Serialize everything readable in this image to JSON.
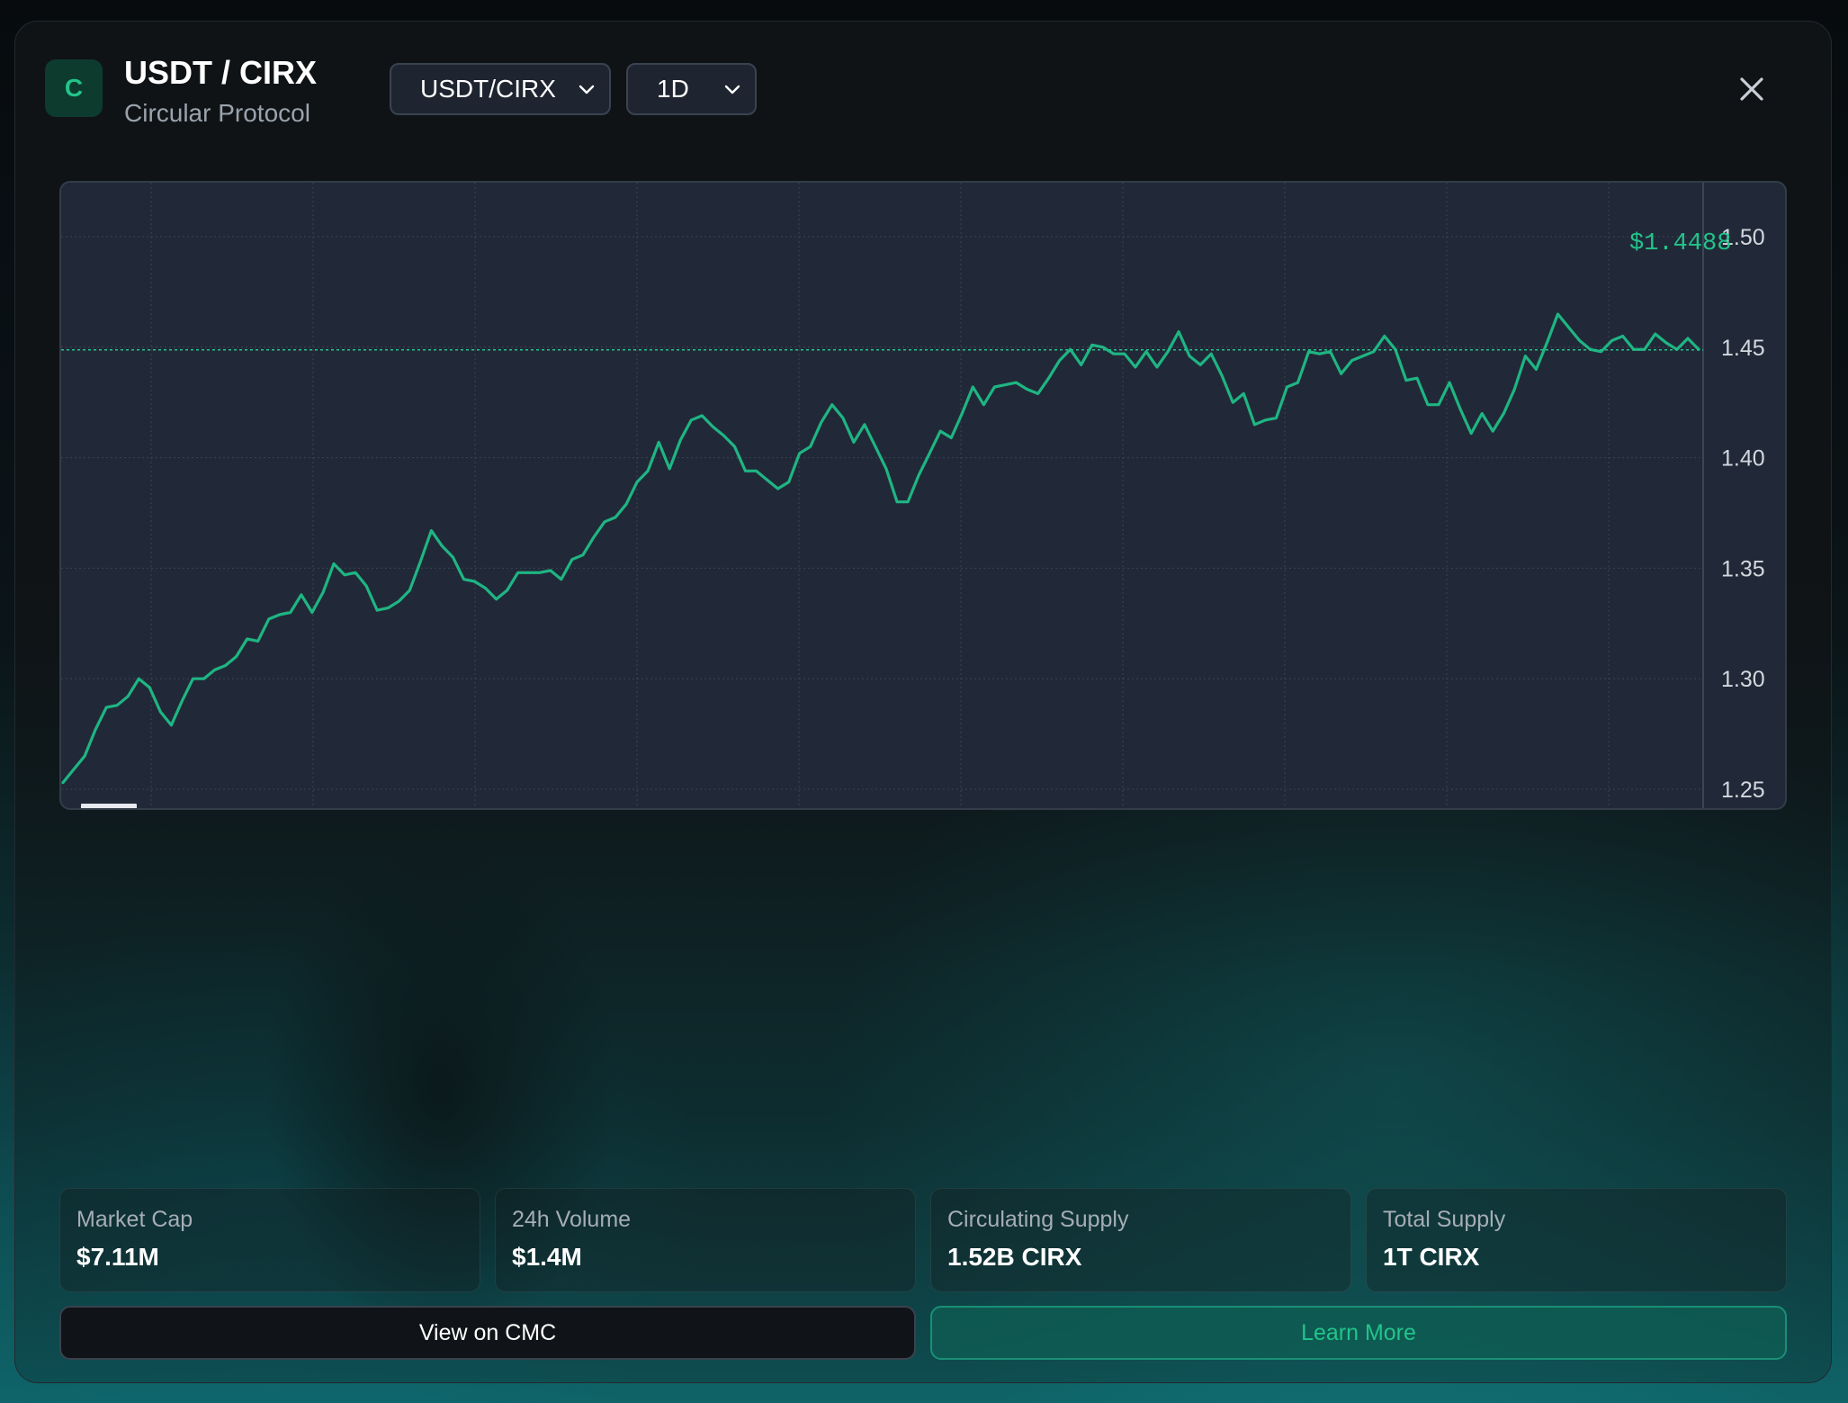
{
  "header": {
    "icon_letter": "C",
    "title": "USDT / CIRX",
    "subtitle": "Circular Protocol",
    "pair_select": {
      "value": "USDT/CIRX"
    },
    "interval_select": {
      "value": "1D"
    }
  },
  "colors": {
    "accent": "#22c48a",
    "chart_bg": "#212938",
    "line": "#1fb583"
  },
  "chart_data": {
    "type": "line",
    "title": "",
    "xlabel": "",
    "ylabel": "",
    "ylim": [
      1.24,
      1.505
    ],
    "y_ticks": [
      "1.50",
      "1.45",
      "1.40",
      "1.35",
      "1.30",
      "1.25"
    ],
    "y_tick_values": [
      1.5,
      1.45,
      1.4,
      1.35,
      1.3,
      1.25
    ],
    "current_price_label": "$1.4488",
    "current_price_value": 1.4488,
    "grid": true,
    "series": [
      {
        "values": [
          1.253,
          1.259,
          1.265,
          1.277,
          1.287,
          1.288,
          1.292,
          1.3,
          1.296,
          1.285,
          1.279,
          1.29,
          1.3,
          1.3,
          1.304,
          1.306,
          1.31,
          1.318,
          1.317,
          1.327,
          1.329,
          1.33,
          1.338,
          1.33,
          1.339,
          1.352,
          1.347,
          1.348,
          1.342,
          1.331,
          1.332,
          1.335,
          1.34,
          1.353,
          1.367,
          1.36,
          1.355,
          1.345,
          1.344,
          1.341,
          1.336,
          1.34,
          1.348,
          1.348,
          1.348,
          1.349,
          1.345,
          1.354,
          1.356,
          1.364,
          1.371,
          1.373,
          1.379,
          1.389,
          1.394,
          1.407,
          1.395,
          1.408,
          1.417,
          1.419,
          1.414,
          1.41,
          1.405,
          1.394,
          1.394,
          1.39,
          1.386,
          1.389,
          1.402,
          1.405,
          1.416,
          1.424,
          1.418,
          1.407,
          1.415,
          1.405,
          1.395,
          1.38,
          1.38,
          1.392,
          1.402,
          1.412,
          1.409,
          1.42,
          1.432,
          1.424,
          1.432,
          1.433,
          1.434,
          1.431,
          1.429,
          1.436,
          1.444,
          1.449,
          1.442,
          1.451,
          1.45,
          1.447,
          1.447,
          1.441,
          1.448,
          1.441,
          1.448,
          1.457,
          1.446,
          1.442,
          1.447,
          1.437,
          1.425,
          1.429,
          1.415,
          1.417,
          1.418,
          1.432,
          1.434,
          1.448,
          1.447,
          1.448,
          1.438,
          1.444,
          1.446,
          1.448,
          1.455,
          1.449,
          1.435,
          1.436,
          1.424,
          1.424,
          1.434,
          1.422,
          1.411,
          1.42,
          1.412,
          1.42,
          1.431,
          1.446,
          1.44,
          1.452,
          1.465,
          1.459,
          1.453,
          1.449,
          1.448,
          1.453,
          1.455,
          1.449,
          1.449,
          1.456,
          1.452,
          1.449,
          1.454,
          1.449
        ]
      }
    ]
  },
  "stats": [
    {
      "label": "Market Cap",
      "value": "$7.11M"
    },
    {
      "label": "24h Volume",
      "value": "$1.4M"
    },
    {
      "label": "Circulating Supply",
      "value": "1.52B CIRX"
    },
    {
      "label": "Total Supply",
      "value": "1T CIRX"
    }
  ],
  "buttons": {
    "view_cmc": "View on CMC",
    "learn_more": "Learn More"
  }
}
